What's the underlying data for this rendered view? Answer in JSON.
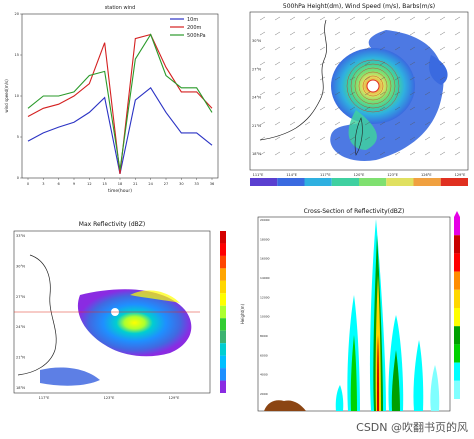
{
  "watermark": "CSDN @吹翻书页的风",
  "chart_data": [
    {
      "type": "line",
      "title": "station wind",
      "xlabel": "time(hour)",
      "ylabel": "wind speed(m/s)",
      "x": [
        0,
        3,
        6,
        9,
        12,
        15,
        18,
        21,
        24,
        27,
        30,
        33,
        36
      ],
      "xticks": [
        "0",
        "3",
        "6",
        "9",
        "12",
        "15",
        "18",
        "21",
        "24",
        "27",
        "30",
        "33",
        "36"
      ],
      "ylim": [
        0,
        20
      ],
      "legend_placement": "top-right",
      "series": [
        {
          "name": "10m",
          "color": "#2b33c4",
          "values": [
            4.5,
            5.5,
            6.2,
            6.8,
            8.0,
            9.8,
            0.5,
            9.5,
            11.0,
            8.0,
            5.5,
            5.5,
            4.0
          ]
        },
        {
          "name": "200m",
          "color": "#d42020",
          "values": [
            7.5,
            8.5,
            9.0,
            10.0,
            11.5,
            16.5,
            0.5,
            17.0,
            17.5,
            13.5,
            10.5,
            10.5,
            8.5
          ]
        },
        {
          "name": "500hPa",
          "color": "#2a9a2a",
          "values": [
            8.5,
            10.0,
            10.0,
            10.5,
            12.5,
            13.0,
            1.0,
            14.5,
            17.5,
            12.5,
            11.0,
            11.0,
            8.0
          ]
        }
      ]
    },
    {
      "type": "heatmap",
      "title": "500hPa Height(dm), Wind Speed (m/s), Barbs(m/s)",
      "xticks": [
        "111°E",
        "114°E",
        "117°E",
        "120°E",
        "123°E",
        "126°E",
        "129°E"
      ],
      "yticks": [
        "30°N",
        "27°N",
        "24°N",
        "21°N",
        "18°N"
      ],
      "colorbar_colors": [
        "#5a3fd0",
        "#3a6ae0",
        "#2fb0e0",
        "#3fd0a0",
        "#7fe070",
        "#e0e060",
        "#f0a040",
        "#e03020"
      ]
    },
    {
      "type": "heatmap",
      "title": "Max Reflectivity (dBZ)",
      "xticks": [
        "117°E",
        "123°E",
        "129°E"
      ],
      "yticks": [
        "33°N",
        "30°N",
        "27°N",
        "24°N",
        "21°N",
        "18°N"
      ],
      "colorbar_colors": [
        "#8a2be2",
        "#1e90ff",
        "#00bfff",
        "#00ced1",
        "#3cb371",
        "#32cd32",
        "#adff2f",
        "#ffff00",
        "#ffd700",
        "#ffa500",
        "#ff4500",
        "#ff0000",
        "#d40000"
      ]
    },
    {
      "type": "heatmap",
      "title": "Cross-Section of Reflectivity(dBZ)",
      "ylabel": "Height(m)",
      "yticks": [
        "20000",
        "18000",
        "16000",
        "14000",
        "12000",
        "10000",
        "8000",
        "6000",
        "4000",
        "2000"
      ],
      "colorbar_colors": [
        "#e600e6",
        "#c80000",
        "#ff0000",
        "#ff8c00",
        "#ffd700",
        "#ffff00",
        "#00a000",
        "#00d200",
        "#00ffff",
        "#7fffff"
      ]
    }
  ]
}
